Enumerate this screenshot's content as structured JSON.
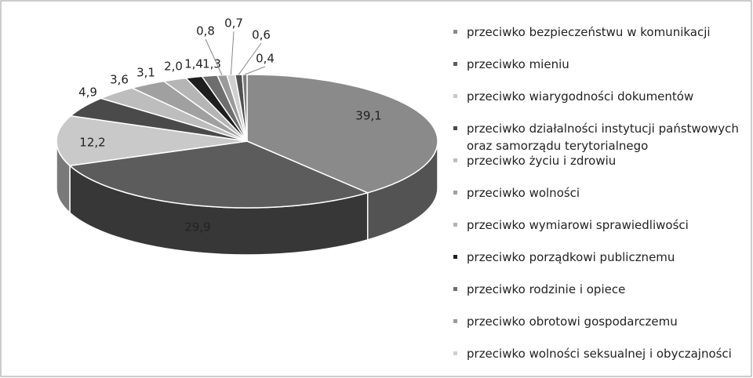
{
  "chart_data": {
    "type": "pie3d",
    "categories": [
      "przeciwko bezpieczeństwu w komunikacji",
      "przeciwko mieniu",
      "przeciwko wiarygodności dokumentów",
      "przeciwko działalności instytucji państwowych oraz samorządu terytorialnego",
      "przeciwko życiu i zdrowiu",
      "przeciwko wolności",
      "przeciwko wymiarowi sprawiedliwości",
      "przeciwko porządkowi publicznemu",
      "przeciwko rodzinie i opiece",
      "przeciwko obrotowi gospodarczemu",
      "przeciwko wolności seksualnej i obyczajności",
      null,
      null
    ],
    "values": [
      39.1,
      29.9,
      12.2,
      4.9,
      3.6,
      3.1,
      2.0,
      1.4,
      1.3,
      0.8,
      0.7,
      0.6,
      0.4
    ],
    "value_labels": [
      "39,1",
      "29,9",
      "12,2",
      "4,9",
      "3,6",
      "3,1",
      "2,0",
      "1,4",
      "1,3",
      "0,8",
      "0,7",
      "0,6",
      "0,4"
    ],
    "colors": [
      "#8a8a8a",
      "#5c5c5c",
      "#c9c9c9",
      "#4a4a4a",
      "#bdbdbd",
      "#a0a0a0",
      "#b5b5b5",
      "#1e1e1e",
      "#6e6e6e",
      "#9a9a9a",
      "#d0d0d0",
      "#505050",
      "#7a7a7a"
    ],
    "legend": "right"
  }
}
